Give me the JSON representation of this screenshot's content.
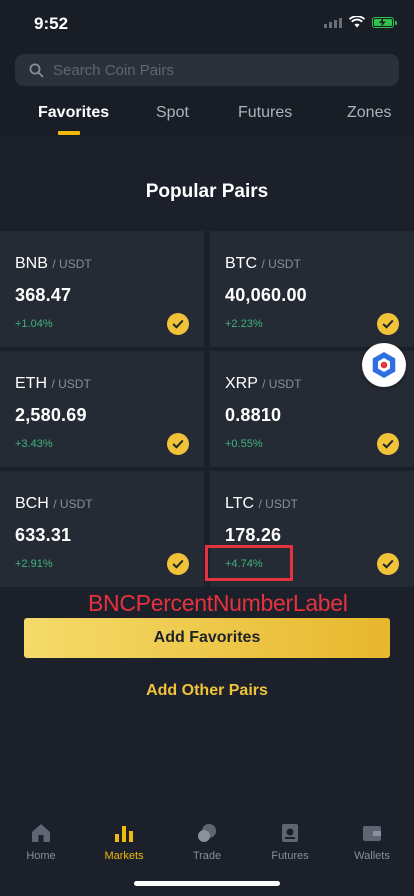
{
  "status_bar": {
    "time": "9:52"
  },
  "search": {
    "placeholder": "Search Coin Pairs"
  },
  "tabs": [
    {
      "label": "Favorites",
      "active": true
    },
    {
      "label": "Spot",
      "active": false
    },
    {
      "label": "Futures",
      "active": false
    },
    {
      "label": "Zones",
      "active": false
    }
  ],
  "popular": {
    "title": "Popular Pairs",
    "pairs": [
      {
        "base": "BNB",
        "quote": "/ USDT",
        "price": "368.47",
        "change": "+1.04%",
        "selected": true
      },
      {
        "base": "BTC",
        "quote": "/ USDT",
        "price": "40,060.00",
        "change": "+2.23%",
        "selected": true
      },
      {
        "base": "ETH",
        "quote": "/ USDT",
        "price": "2,580.69",
        "change": "+3.43%",
        "selected": true
      },
      {
        "base": "XRP",
        "quote": "/ USDT",
        "price": "0.8810",
        "change": "+0.55%",
        "selected": true
      },
      {
        "base": "BCH",
        "quote": "/ USDT",
        "price": "633.31",
        "change": "+2.91%",
        "selected": true
      },
      {
        "base": "LTC",
        "quote": "/ USDT",
        "price": "178.26",
        "change": "+4.74%",
        "selected": true
      }
    ]
  },
  "annotation": {
    "label": "BNCPercentNumberLabel",
    "color": "#e6323e"
  },
  "actions": {
    "add_favorites": "Add Favorites",
    "add_other_pairs": "Add Other Pairs"
  },
  "bottom_nav": [
    {
      "label": "Home",
      "icon": "home-icon",
      "active": false
    },
    {
      "label": "Markets",
      "icon": "markets-icon",
      "active": true
    },
    {
      "label": "Trade",
      "icon": "trade-icon",
      "active": false
    },
    {
      "label": "Futures",
      "icon": "futures-icon",
      "active": false
    },
    {
      "label": "Wallets",
      "icon": "wallet-icon",
      "active": false
    }
  ],
  "colors": {
    "accent": "#f0b90b",
    "positive": "#40b37c",
    "background": "#1b202a",
    "card": "#252b34"
  }
}
